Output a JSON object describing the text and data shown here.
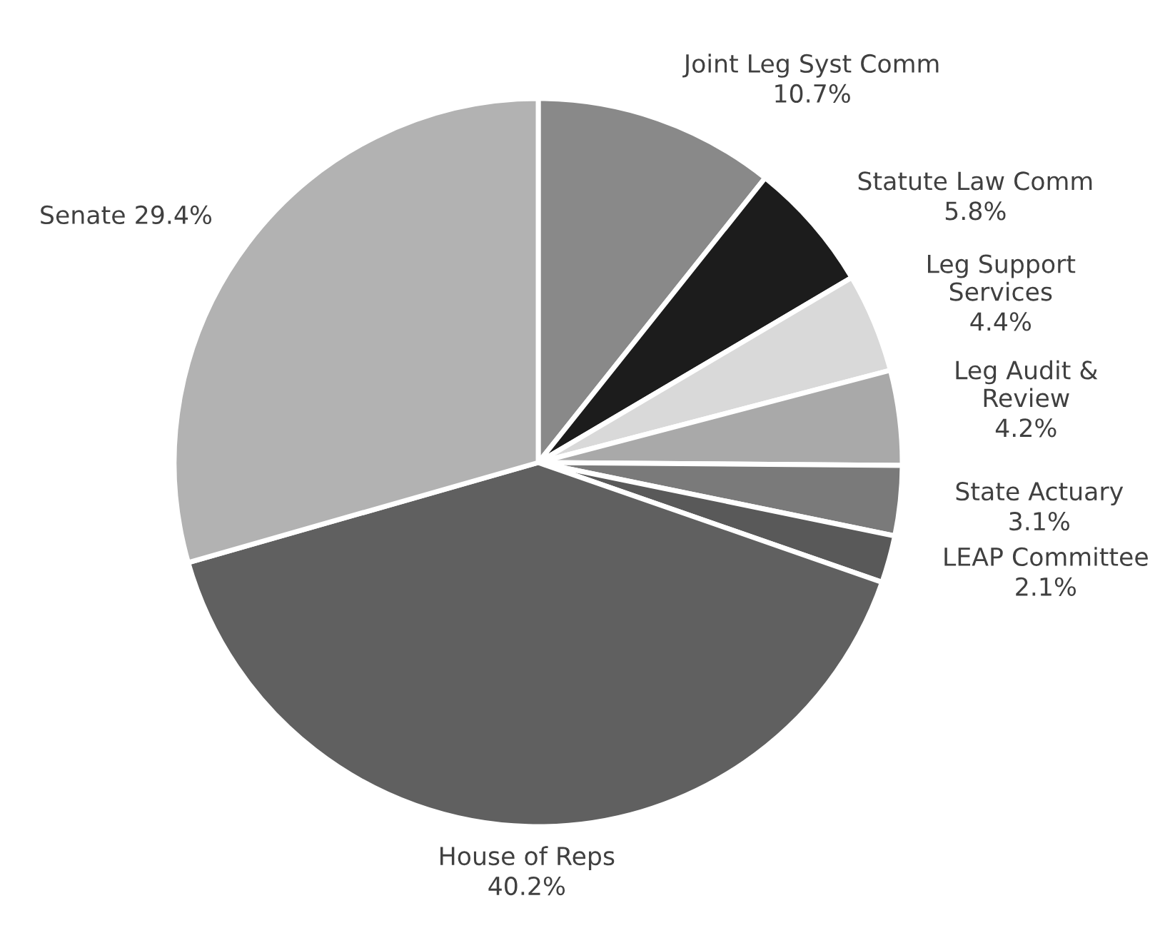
{
  "chart_data": {
    "type": "pie",
    "categories": [
      "Joint Leg Syst Comm",
      "Statute Law Comm",
      "Leg Support Services",
      "Leg Audit & Review",
      "State Actuary",
      "LEAP Committee",
      "House of Reps",
      "Senate"
    ],
    "values": [
      10.7,
      5.8,
      4.4,
      4.2,
      3.1,
      2.1,
      40.2,
      29.4
    ],
    "colors": [
      "#898989",
      "#1c1c1c",
      "#d9d9d9",
      "#a9a9a9",
      "#7a7a7a",
      "#595959",
      "#606060",
      "#b2b2b2"
    ],
    "value_labels": [
      "10.7%",
      "5.8%",
      "4.4%",
      "4.2%",
      "3.1%",
      "2.1%",
      "40.2%",
      "29.4%"
    ]
  }
}
